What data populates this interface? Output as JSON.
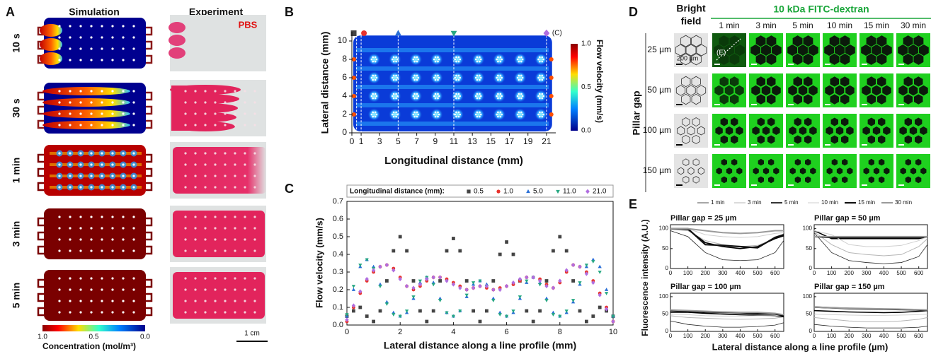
{
  "panels": {
    "A": {
      "label": "A",
      "columns": [
        "Simulation",
        "Experiment"
      ],
      "rows": [
        "10 s",
        "30 s",
        "1 min",
        "3 min",
        "5 min"
      ],
      "reagent": "PBS",
      "colorbar": {
        "ticks": [
          {
            "value": 1,
            "label": "1.0"
          },
          0.5,
          {
            "value": 0,
            "label": "0.0"
          }
        ],
        "label": "Concentration (mol/m³)"
      },
      "scale_bar": "1 cm"
    },
    "B": {
      "label": "B",
      "xlabel": "Longitudinal distance (mm)",
      "ylabel": "Lateral distance (mm)",
      "xlim": [
        0,
        22
      ],
      "xticks": [
        0,
        1,
        3,
        5,
        7,
        9,
        11,
        13,
        15,
        17,
        19,
        21
      ],
      "ylim": [
        0,
        11
      ],
      "yticks": [
        0,
        2,
        4,
        6,
        8,
        10
      ],
      "colorbar": {
        "lim": [
          0,
          1
        ],
        "ticks": [
          {
            "value": 0,
            "label": "0.0"
          },
          0.5,
          {
            "value": 1,
            "label": "1.0"
          }
        ],
        "label": "Flow velocity (mm/s)"
      },
      "annotation": "(C)"
    },
    "D": {
      "label": "D",
      "bright_field": [
        "Bright",
        "field"
      ],
      "dye": "10 kDa FITC-dextran",
      "times": [
        "1 min",
        "3 min",
        "5 min",
        "10 min",
        "15 min",
        "30 min"
      ],
      "row_title": "Pillar gap",
      "rows": [
        "25 µm",
        "50 µm",
        "100 µm",
        "150 µm"
      ],
      "arrow_label": "(E)",
      "scale_bar": "200 µm"
    }
  },
  "chart_data": [
    {
      "type": "scatter",
      "label": "C",
      "legend_title": "Longitudinal distance (mm):",
      "xlabel": "Lateral distance along a line profile (mm)",
      "ylabel": "Flow velocity (mm/s)",
      "xlim": [
        0,
        10
      ],
      "xticks": [
        0,
        2,
        4,
        6,
        8,
        10
      ],
      "ylim": [
        0,
        0.7
      ],
      "yticks": [
        {
          "value": 0,
          "label": "0.0"
        },
        0.1,
        0.2,
        0.3,
        0.4,
        0.5,
        0.6,
        0.7
      ],
      "x": [
        0,
        0.25,
        0.5,
        0.75,
        1,
        1.25,
        1.5,
        1.75,
        2,
        2.25,
        2.5,
        2.75,
        3,
        3.25,
        3.5,
        3.75,
        4,
        4.25,
        4.5,
        4.75,
        5,
        5.25,
        5.5,
        5.75,
        6,
        6.25,
        6.5,
        6.75,
        7,
        7.25,
        7.5,
        7.75,
        8,
        8.25,
        8.5,
        8.75,
        9,
        9.25,
        9.5,
        9.75,
        10
      ],
      "series": [
        {
          "name": "0.5",
          "color": "#444444",
          "marker": "square",
          "values": [
            0.05,
            0.08,
            0.1,
            0.05,
            0.02,
            0.08,
            0.25,
            0.42,
            0.5,
            0.42,
            0.25,
            0.08,
            0.02,
            0.08,
            0.25,
            0.42,
            0.49,
            0.42,
            0.25,
            0.08,
            0.02,
            0.08,
            0.25,
            0.4,
            0.47,
            0.4,
            0.25,
            0.08,
            0.02,
            0.08,
            0.25,
            0.42,
            0.5,
            0.42,
            0.25,
            0.08,
            0.02,
            0.05,
            0.1,
            0.08,
            0.05
          ]
        },
        {
          "name": "1.0",
          "color": "#e8322c",
          "marker": "circle",
          "values": [
            0.02,
            0.1,
            0.18,
            0.25,
            0.3,
            0.33,
            0.34,
            0.32,
            0.27,
            0.22,
            0.2,
            0.22,
            0.25,
            0.27,
            0.27,
            0.26,
            0.24,
            0.22,
            0.2,
            0.21,
            0.22,
            0.21,
            0.2,
            0.21,
            0.22,
            0.23,
            0.25,
            0.27,
            0.27,
            0.26,
            0.23,
            0.21,
            0.24,
            0.3,
            0.34,
            0.33,
            0.3,
            0.25,
            0.18,
            0.1,
            0.02
          ]
        },
        {
          "name": "5.0",
          "color": "#2a6fd6",
          "marker": "triangle",
          "values": [
            0.05,
            0.2,
            0.33,
            0.37,
            0.33,
            0.23,
            0.13,
            0.07,
            0.05,
            0.07,
            0.15,
            0.24,
            0.27,
            0.24,
            0.15,
            0.07,
            0.05,
            0.08,
            0.16,
            0.23,
            0.25,
            0.23,
            0.15,
            0.07,
            0.05,
            0.07,
            0.15,
            0.24,
            0.27,
            0.24,
            0.15,
            0.07,
            0.05,
            0.07,
            0.13,
            0.23,
            0.33,
            0.37,
            0.33,
            0.2,
            0.05
          ]
        },
        {
          "name": "11.0",
          "color": "#27a882",
          "marker": "triangle-down",
          "values": [
            0.06,
            0.22,
            0.34,
            0.37,
            0.32,
            0.22,
            0.12,
            0.06,
            0.05,
            0.08,
            0.16,
            0.25,
            0.27,
            0.23,
            0.14,
            0.07,
            0.05,
            0.08,
            0.17,
            0.24,
            0.25,
            0.22,
            0.14,
            0.06,
            0.05,
            0.08,
            0.16,
            0.25,
            0.27,
            0.23,
            0.14,
            0.06,
            0.05,
            0.08,
            0.14,
            0.24,
            0.34,
            0.36,
            0.3,
            0.18,
            0.05
          ]
        },
        {
          "name": "21.0",
          "color": "#b06ee0",
          "marker": "diamond",
          "values": [
            0.03,
            0.11,
            0.19,
            0.26,
            0.31,
            0.33,
            0.34,
            0.31,
            0.26,
            0.22,
            0.21,
            0.23,
            0.26,
            0.27,
            0.27,
            0.25,
            0.23,
            0.21,
            0.2,
            0.21,
            0.22,
            0.22,
            0.2,
            0.2,
            0.22,
            0.24,
            0.26,
            0.27,
            0.27,
            0.25,
            0.22,
            0.21,
            0.25,
            0.31,
            0.34,
            0.33,
            0.29,
            0.24,
            0.17,
            0.09,
            0.02
          ]
        }
      ]
    },
    {
      "type": "line-grid",
      "label": "E",
      "xlabel": "Lateral distance along a line profile (µm)",
      "ylabel": "Fluorescence intensity (A.U.)",
      "legend": [
        {
          "name": "1 min",
          "color": "#222222"
        },
        {
          "name": "3 min",
          "color": "#b5b5b5"
        },
        {
          "name": "5 min",
          "color": "#000000"
        },
        {
          "name": "10 min",
          "color": "#cfcfcf"
        },
        {
          "name": "15 min",
          "color": "#111111"
        },
        {
          "name": "30 min",
          "color": "#9a9a9a"
        }
      ],
      "xlim": [
        0,
        650
      ],
      "xticks": [
        0,
        100,
        200,
        300,
        400,
        500,
        600
      ],
      "ylim": [
        0,
        110
      ],
      "yticks": [
        0,
        50,
        100
      ],
      "x": [
        0,
        100,
        200,
        300,
        400,
        500,
        600,
        650
      ],
      "subplots": [
        {
          "title": "Pillar gap = 25 µm",
          "series": [
            {
              "values": [
                95,
                80,
                40,
                22,
                20,
                22,
                40,
                70
              ]
            },
            {
              "values": [
                98,
                95,
                70,
                60,
                55,
                58,
                75,
                85
              ]
            },
            {
              "values": [
                100,
                98,
                65,
                55,
                50,
                55,
                75,
                82
              ]
            },
            {
              "values": [
                100,
                100,
                85,
                80,
                78,
                80,
                88,
                90
              ]
            },
            {
              "values": [
                100,
                100,
                60,
                58,
                55,
                52,
                78,
                85
              ]
            },
            {
              "values": [
                100,
                100,
                95,
                90,
                88,
                90,
                95,
                95
              ]
            }
          ]
        },
        {
          "title": "Pillar gap = 50 µm",
          "series": [
            {
              "values": [
                90,
                40,
                20,
                15,
                12,
                15,
                30,
                60
              ]
            },
            {
              "values": [
                92,
                60,
                40,
                35,
                32,
                35,
                55,
                75
              ]
            },
            {
              "values": [
                95,
                75,
                75,
                75,
                75,
                75,
                75,
                80
              ]
            },
            {
              "values": [
                95,
                85,
                60,
                55,
                55,
                58,
                70,
                80
              ]
            },
            {
              "values": [
                80,
                78,
                78,
                78,
                78,
                78,
                78,
                80
              ]
            },
            {
              "values": [
                80,
                80,
                80,
                80,
                80,
                80,
                80,
                80
              ]
            }
          ]
        },
        {
          "title": "Pillar gap = 100 µm",
          "series": [
            {
              "values": [
                30,
                20,
                15,
                12,
                12,
                14,
                18,
                25
              ]
            },
            {
              "values": [
                45,
                40,
                38,
                36,
                35,
                36,
                38,
                42
              ]
            },
            {
              "values": [
                55,
                55,
                52,
                50,
                48,
                47,
                45,
                42
              ]
            },
            {
              "values": [
                50,
                48,
                45,
                44,
                44,
                45,
                45,
                45
              ]
            },
            {
              "values": [
                60,
                58,
                56,
                55,
                54,
                52,
                50,
                45
              ]
            },
            {
              "values": [
                62,
                60,
                58,
                56,
                55,
                55,
                52,
                48
              ]
            }
          ]
        },
        {
          "title": "Pillar gap = 150 µm",
          "series": [
            {
              "values": [
                20,
                15,
                12,
                10,
                10,
                10,
                12,
                15
              ]
            },
            {
              "values": [
                40,
                35,
                30,
                28,
                28,
                30,
                35,
                40
              ]
            },
            {
              "values": [
                60,
                58,
                56,
                55,
                54,
                55,
                58,
                60
              ]
            },
            {
              "values": [
                50,
                48,
                47,
                46,
                46,
                47,
                48,
                50
              ]
            },
            {
              "values": [
                70,
                68,
                66,
                65,
                64,
                63,
                62,
                60
              ]
            },
            {
              "values": [
                70,
                68,
                67,
                66,
                65,
                64,
                63,
                62
              ]
            }
          ]
        }
      ]
    }
  ]
}
